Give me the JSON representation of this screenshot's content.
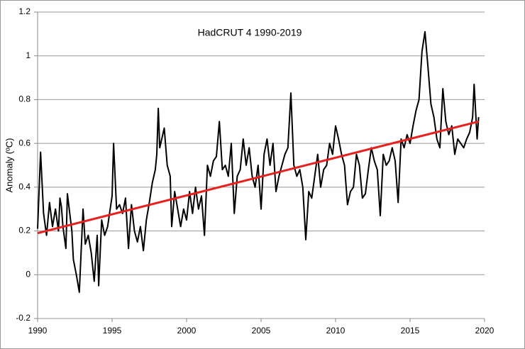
{
  "chart_data": {
    "type": "line",
    "title": "HadCRUT 4 1990-2019",
    "y_label": "Anomaly (ºC)",
    "xlim": [
      1990,
      2020
    ],
    "xticks": [
      1990,
      1995,
      2000,
      2005,
      2010,
      2015,
      2020
    ],
    "ylim": [
      -0.2,
      1.2
    ],
    "yticks": [
      -0.2,
      0,
      0.2,
      0.4,
      0.6,
      0.8,
      1,
      1.2
    ],
    "grid": true,
    "series": [
      {
        "color": "#000000",
        "x": [
          1990.0,
          1990.2,
          1990.4,
          1990.6,
          1990.8,
          1991.0,
          1991.2,
          1991.4,
          1991.5,
          1991.6,
          1991.7,
          1991.8,
          1991.9,
          1992.0,
          1992.3,
          1992.4,
          1992.6,
          1992.8,
          1993.05,
          1993.2,
          1993.4,
          1993.6,
          1993.8,
          1994.0,
          1994.1,
          1994.3,
          1994.5,
          1994.7,
          1995.0,
          1995.1,
          1995.3,
          1995.5,
          1995.7,
          1995.9,
          1996.1,
          1996.3,
          1996.5,
          1996.7,
          1996.9,
          1997.1,
          1997.3,
          1997.5,
          1997.7,
          1997.9,
          1998.0,
          1998.1,
          1998.2,
          1998.4,
          1998.5,
          1998.7,
          1998.9,
          1999.0,
          1999.2,
          1999.4,
          1999.6,
          1999.8,
          2000.0,
          2000.2,
          2000.4,
          2000.6,
          2000.8,
          2001.0,
          2001.2,
          2001.4,
          2001.6,
          2001.8,
          2002.0,
          2002.2,
          2002.4,
          2002.6,
          2002.8,
          2003.0,
          2003.2,
          2003.4,
          2003.6,
          2003.8,
          2004.0,
          2004.2,
          2004.4,
          2004.6,
          2004.8,
          2005.0,
          2005.2,
          2005.4,
          2005.6,
          2005.8,
          2006.0,
          2006.2,
          2006.4,
          2006.6,
          2006.8,
          2007.0,
          2007.2,
          2007.4,
          2007.6,
          2007.8,
          2008.0,
          2008.2,
          2008.4,
          2008.6,
          2008.8,
          2009.0,
          2009.2,
          2009.4,
          2009.6,
          2009.8,
          2010.0,
          2010.2,
          2010.4,
          2010.6,
          2010.8,
          2011.0,
          2011.2,
          2011.4,
          2011.6,
          2011.8,
          2012.0,
          2012.2,
          2012.4,
          2012.6,
          2012.8,
          2013.0,
          2013.2,
          2013.4,
          2013.6,
          2013.8,
          2014.0,
          2014.2,
          2014.4,
          2014.6,
          2014.8,
          2015.0,
          2015.2,
          2015.4,
          2015.6,
          2015.8,
          2016.0,
          2016.2,
          2016.4,
          2016.6,
          2016.8,
          2017.0,
          2017.2,
          2017.4,
          2017.6,
          2017.8,
          2018.0,
          2018.2,
          2018.4,
          2018.6,
          2018.8,
          2019.0,
          2019.2,
          2019.3,
          2019.5,
          2019.6
        ],
        "values": [
          0.21,
          0.56,
          0.28,
          0.18,
          0.33,
          0.22,
          0.3,
          0.2,
          0.35,
          0.31,
          0.22,
          0.17,
          0.12,
          0.37,
          0.2,
          0.07,
          0.0,
          -0.08,
          0.3,
          0.14,
          0.18,
          0.1,
          -0.03,
          0.18,
          -0.05,
          0.25,
          0.18,
          0.22,
          0.36,
          0.6,
          0.3,
          0.32,
          0.28,
          0.35,
          0.12,
          0.32,
          0.2,
          0.15,
          0.22,
          0.11,
          0.25,
          0.33,
          0.42,
          0.48,
          0.55,
          0.76,
          0.58,
          0.64,
          0.67,
          0.5,
          0.45,
          0.22,
          0.38,
          0.3,
          0.22,
          0.3,
          0.25,
          0.38,
          0.28,
          0.4,
          0.3,
          0.36,
          0.18,
          0.5,
          0.45,
          0.52,
          0.54,
          0.7,
          0.48,
          0.5,
          0.45,
          0.6,
          0.28,
          0.45,
          0.48,
          0.62,
          0.5,
          0.58,
          0.45,
          0.4,
          0.5,
          0.3,
          0.55,
          0.62,
          0.5,
          0.6,
          0.38,
          0.45,
          0.5,
          0.55,
          0.58,
          0.83,
          0.5,
          0.45,
          0.48,
          0.4,
          0.16,
          0.38,
          0.35,
          0.45,
          0.55,
          0.4,
          0.48,
          0.5,
          0.6,
          0.55,
          0.68,
          0.62,
          0.55,
          0.5,
          0.32,
          0.38,
          0.4,
          0.55,
          0.5,
          0.35,
          0.37,
          0.48,
          0.58,
          0.52,
          0.48,
          0.27,
          0.55,
          0.5,
          0.52,
          0.58,
          0.52,
          0.33,
          0.62,
          0.58,
          0.64,
          0.6,
          0.68,
          0.75,
          0.8,
          1.02,
          1.11,
          0.95,
          0.78,
          0.72,
          0.62,
          0.58,
          0.85,
          0.7,
          0.64,
          0.68,
          0.55,
          0.62,
          0.6,
          0.58,
          0.62,
          0.65,
          0.72,
          0.87,
          0.62,
          0.72
        ]
      },
      {
        "color": "#e8201e",
        "x": [
          1990,
          2019.6
        ],
        "values": [
          0.19,
          0.7
        ]
      }
    ]
  }
}
